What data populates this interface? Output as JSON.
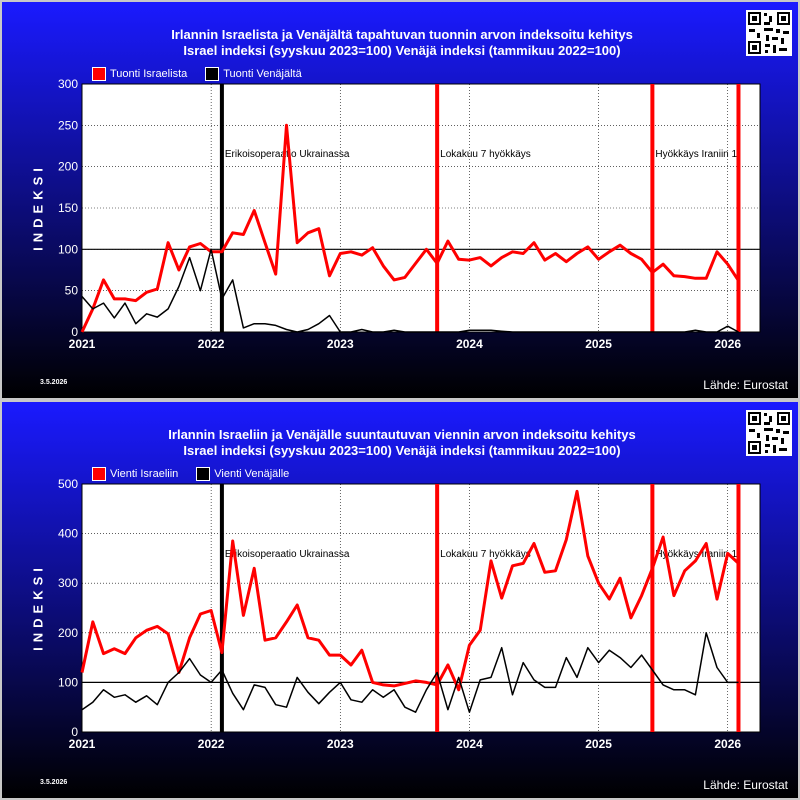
{
  "footer": {
    "date": "3.5.2026",
    "source": "Lähde: Eurostat"
  },
  "colors": {
    "background_top": "#1a1aff",
    "background_bottom": "#000000",
    "israel": "#ff0000",
    "russia": "#000000",
    "event_line": "#ff0000"
  },
  "chart_data": [
    {
      "type": "line",
      "title": "Irlannin Israelista ja Venäjältä tapahtuvan tuonnin arvon indeksoitu kehitys",
      "subtitle": "Israel indeksi (syyskuu 2023=100) Venäjä indeksi (tammikuu 2022=100)",
      "ylabel": "INDEKSI",
      "xlabel": "",
      "ylim": [
        0,
        300
      ],
      "yticks": [
        0,
        50,
        100,
        150,
        200,
        250,
        300
      ],
      "xlim": [
        "2021-01",
        "2026-04"
      ],
      "xticks": [
        "2021",
        "2022",
        "2023",
        "2024",
        "2025",
        "2026"
      ],
      "grid": true,
      "legend_position": "top-left",
      "reference_line": 100,
      "events": [
        {
          "date": "2022-02",
          "label": "Erikoisoperaatio Ukrainassa",
          "color": "#000000"
        },
        {
          "date": "2023-10",
          "label": "Lokakuu 7 hyökkäys",
          "color": "#ff0000"
        },
        {
          "date": "2025-06",
          "label": "Hyökkäys Iraniin 1",
          "color": "#ff0000"
        },
        {
          "date": "2026-02",
          "label": "",
          "color": "#ff0000"
        }
      ],
      "series": [
        {
          "name": "Tuonti Israelista",
          "color": "#ff0000",
          "start": "2021-01",
          "values": [
            0,
            28,
            63,
            40,
            40,
            38,
            48,
            52,
            108,
            75,
            103,
            107,
            97,
            97,
            120,
            118,
            147,
            108,
            70,
            250,
            108,
            120,
            125,
            68,
            95,
            97,
            93,
            102,
            80,
            63,
            66,
            83,
            100,
            83,
            110,
            88,
            87,
            90,
            80,
            90,
            97,
            95,
            108,
            87,
            95,
            85,
            95,
            103,
            88,
            97,
            105,
            95,
            88,
            72,
            82,
            68,
            67,
            65,
            65,
            97,
            82,
            62
          ]
        },
        {
          "name": "Tuonti Venäjältä",
          "color": "#000000",
          "start": "2021-01",
          "values": [
            43,
            28,
            35,
            17,
            35,
            10,
            22,
            18,
            28,
            55,
            90,
            50,
            100,
            40,
            63,
            5,
            10,
            10,
            8,
            3,
            0,
            3,
            10,
            20,
            0,
            0,
            3,
            0,
            0,
            2,
            0,
            0,
            0,
            0,
            0,
            0,
            2,
            2,
            2,
            1,
            0,
            0,
            0,
            0,
            0,
            0,
            0,
            0,
            0,
            0,
            0,
            0,
            0,
            0,
            0,
            0,
            0,
            2,
            0,
            0,
            7,
            0
          ]
        }
      ]
    },
    {
      "type": "line",
      "title": "Irlannin Israeliin ja Venäjälle suuntautuvan viennin arvon indeksoitu kehitys",
      "subtitle": "Israel indeksi (syyskuu 2023=100) Venäjä indeksi (tammikuu 2022=100)",
      "ylabel": "INDEKSI",
      "xlabel": "",
      "ylim": [
        0,
        500
      ],
      "yticks": [
        0,
        100,
        200,
        300,
        400,
        500
      ],
      "xlim": [
        "2021-01",
        "2026-04"
      ],
      "xticks": [
        "2021",
        "2022",
        "2023",
        "2024",
        "2025",
        "2026"
      ],
      "grid": true,
      "legend_position": "top-left",
      "reference_line": 100,
      "events": [
        {
          "date": "2022-02",
          "label": "Erikoisoperaatio Ukrainassa",
          "color": "#000000"
        },
        {
          "date": "2023-10",
          "label": "Lokakuu 7 hyökkäys",
          "color": "#ff0000"
        },
        {
          "date": "2025-06",
          "label": "Hyökkäys Iraniin 1",
          "color": "#ff0000"
        },
        {
          "date": "2026-02",
          "label": "",
          "color": "#ff0000"
        }
      ],
      "series": [
        {
          "name": "Vienti Israeliin",
          "color": "#ff0000",
          "start": "2021-01",
          "values": [
            120,
            222,
            158,
            168,
            158,
            190,
            205,
            213,
            198,
            120,
            190,
            238,
            245,
            160,
            385,
            235,
            330,
            185,
            190,
            222,
            256,
            190,
            185,
            155,
            155,
            135,
            165,
            100,
            95,
            93,
            98,
            103,
            100,
            95,
            135,
            85,
            175,
            205,
            345,
            270,
            335,
            340,
            380,
            322,
            325,
            388,
            485,
            355,
            300,
            268,
            310,
            230,
            275,
            330,
            393,
            275,
            325,
            345,
            380,
            268,
            360,
            340
          ]
        },
        {
          "name": "Vienti Venäjälle",
          "color": "#000000",
          "start": "2021-01",
          "values": [
            45,
            60,
            85,
            70,
            75,
            60,
            73,
            55,
            100,
            120,
            148,
            115,
            100,
            125,
            78,
            45,
            95,
            90,
            55,
            50,
            110,
            80,
            57,
            80,
            100,
            65,
            60,
            85,
            70,
            85,
            50,
            40,
            85,
            120,
            45,
            110,
            40,
            105,
            110,
            170,
            75,
            140,
            105,
            90,
            90,
            150,
            110,
            170,
            140,
            165,
            150,
            130,
            155,
            125,
            95,
            85,
            85,
            75,
            200,
            130,
            100,
            100
          ]
        }
      ]
    }
  ]
}
